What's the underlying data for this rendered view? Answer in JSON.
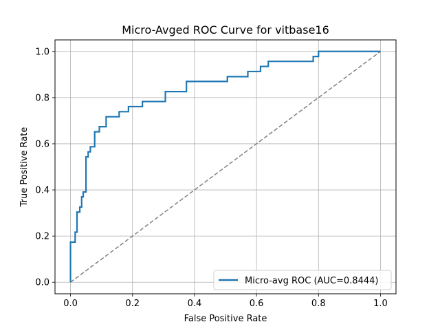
{
  "chart_data": {
    "type": "line",
    "title": "Micro-Avged ROC Curve for vitbase16",
    "xlabel": "False Positive Rate",
    "ylabel": "True Positive Rate",
    "xlim": [
      -0.05,
      1.05
    ],
    "ylim": [
      -0.05,
      1.05
    ],
    "xticks": [
      0.0,
      0.2,
      0.4,
      0.6,
      0.8,
      1.0
    ],
    "yticks": [
      0.0,
      0.2,
      0.4,
      0.6,
      0.8,
      1.0
    ],
    "xtick_labels": [
      "0.0",
      "0.2",
      "0.4",
      "0.6",
      "0.8",
      "1.0"
    ],
    "ytick_labels": [
      "0.0",
      "0.2",
      "0.4",
      "0.6",
      "0.8",
      "1.0"
    ],
    "grid": true,
    "legend_position": "lower-right",
    "series": [
      {
        "name": "Micro-avg ROC (AUC=0.8444)",
        "color": "#1f77b4",
        "style": "solid",
        "x": [
          0.0,
          0.0,
          0.015,
          0.015,
          0.021,
          0.021,
          0.03,
          0.03,
          0.036,
          0.036,
          0.041,
          0.041,
          0.05,
          0.05,
          0.057,
          0.057,
          0.064,
          0.064,
          0.078,
          0.078,
          0.093,
          0.093,
          0.115,
          0.115,
          0.157,
          0.157,
          0.187,
          0.187,
          0.232,
          0.232,
          0.306,
          0.306,
          0.374,
          0.374,
          0.506,
          0.506,
          0.572,
          0.572,
          0.613,
          0.613,
          0.638,
          0.638,
          0.783,
          0.783,
          0.8,
          0.8,
          1.0
        ],
        "y": [
          0.0,
          0.174,
          0.174,
          0.217,
          0.217,
          0.304,
          0.304,
          0.326,
          0.326,
          0.37,
          0.37,
          0.391,
          0.391,
          0.543,
          0.543,
          0.565,
          0.565,
          0.587,
          0.587,
          0.652,
          0.652,
          0.674,
          0.674,
          0.717,
          0.717,
          0.739,
          0.739,
          0.761,
          0.761,
          0.783,
          0.783,
          0.826,
          0.826,
          0.87,
          0.87,
          0.891,
          0.891,
          0.913,
          0.913,
          0.935,
          0.935,
          0.957,
          0.957,
          0.978,
          0.978,
          1.0,
          1.0
        ]
      },
      {
        "name": "",
        "color": "#808080",
        "style": "dashed",
        "x": [
          0.0,
          1.0
        ],
        "y": [
          0.0,
          1.0
        ]
      }
    ]
  }
}
